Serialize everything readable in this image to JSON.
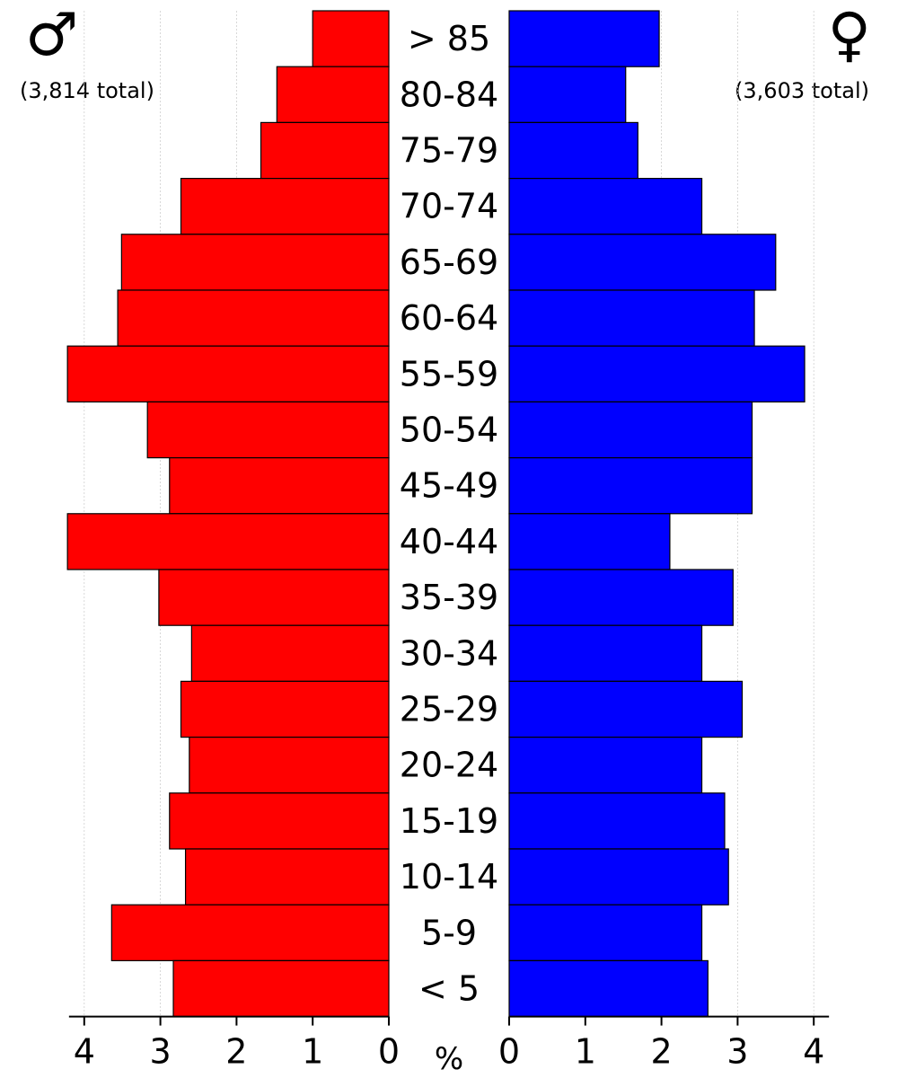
{
  "chart_data": {
    "type": "bar",
    "subtype": "population-pyramid",
    "categories": [
      "> 85",
      "80-84",
      "75-79",
      "70-74",
      "65-69",
      "60-64",
      "55-59",
      "50-54",
      "45-49",
      "40-44",
      "35-39",
      "30-34",
      "25-29",
      "20-24",
      "15-19",
      "10-14",
      "5-9",
      "< 5"
    ],
    "series": [
      {
        "name": "",
        "side": "left",
        "color": "#ff0000",
        "values": [
          1.0,
          1.47,
          1.68,
          2.73,
          3.51,
          3.56,
          4.22,
          3.17,
          2.88,
          4.22,
          3.02,
          2.59,
          2.73,
          2.62,
          2.88,
          2.67,
          3.64,
          2.83
        ]
      },
      {
        "name": "",
        "side": "right",
        "color": "#0000ff",
        "values": [
          1.97,
          1.53,
          1.69,
          2.53,
          3.5,
          3.22,
          3.88,
          3.19,
          3.19,
          2.11,
          2.94,
          2.53,
          3.06,
          2.53,
          2.83,
          2.88,
          2.53,
          2.61
        ]
      }
    ],
    "xlim": [
      0,
      4.2
    ],
    "left_ticks": [
      "4",
      "3",
      "2",
      "1",
      "0"
    ],
    "right_ticks": [
      "0",
      "1",
      "2",
      "3",
      "4"
    ],
    "xlabel": "%",
    "grid": true
  },
  "annotations": {
    "male_symbol": "♂",
    "female_symbol": "♀",
    "male_total": "(3,814 total)",
    "female_total": "(3,603 total)"
  }
}
